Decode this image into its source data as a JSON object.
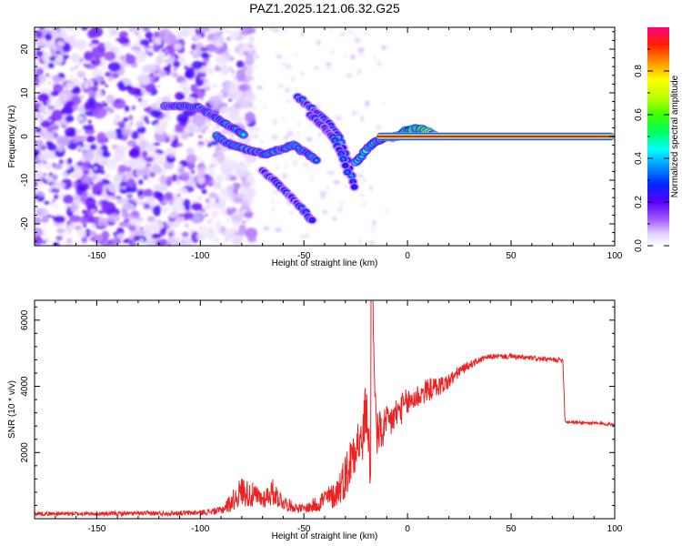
{
  "figure_title": "PAZ1.2025.121.06.32.G25",
  "chart_data": [
    {
      "type": "heatmap",
      "title": "PAZ1.2025.121.06.32.G25",
      "xlabel": "Height of straight line (km)",
      "ylabel": "Frequency (Hz)",
      "xlim": [
        -180,
        100
      ],
      "ylim": [
        -25,
        25
      ],
      "xticks": [
        -150,
        -100,
        -50,
        0,
        50,
        100
      ],
      "xtick_labels": [
        "-150",
        "-100",
        "-50",
        "0",
        "50",
        "100"
      ],
      "yticks": [
        -20,
        -10,
        0,
        10,
        20
      ],
      "ytick_labels": [
        "-20",
        "-10",
        "0",
        "10",
        "20"
      ],
      "colorbar": {
        "label": "Normalized spectral amplitude",
        "range": [
          0,
          1
        ],
        "ticks": [
          0,
          0.2,
          0.4,
          0.6,
          0.8
        ],
        "tick_labels": [
          "0.0",
          "0.2",
          "0.4",
          "0.6",
          "0.8"
        ]
      },
      "features": [
        {
          "name": "noise field",
          "x_range": [
            -180,
            -95
          ],
          "freq_range": [
            -25,
            25
          ],
          "amplitude": 0.15
        },
        {
          "name": "upper branch",
          "points": [
            [
              -117,
              7
            ],
            [
              -108,
              7
            ],
            [
              -100,
              6.5
            ],
            [
              -95,
              5
            ],
            [
              -90,
              3.5
            ],
            [
              -84,
              2
            ],
            [
              -78,
              0
            ]
          ],
          "amplitude": 0.42
        },
        {
          "name": "main trace",
          "points": [
            [
              -92,
              0
            ],
            [
              -85,
              -2
            ],
            [
              -77,
              -3
            ],
            [
              -68,
              -4
            ],
            [
              -62,
              -3
            ],
            [
              -55,
              -2
            ],
            [
              -48,
              -4
            ],
            [
              -43,
              -6
            ]
          ],
          "amplitude": 0.45
        },
        {
          "name": "lower branch",
          "points": [
            [
              -70,
              -8
            ],
            [
              -62,
              -11
            ],
            [
              -56,
              -14
            ],
            [
              -50,
              -17
            ],
            [
              -45,
              -20
            ]
          ],
          "amplitude": 0.3
        },
        {
          "name": "diagonal arc 1",
          "points": [
            [
              -53,
              9
            ],
            [
              -45,
              6
            ],
            [
              -38,
              3
            ],
            [
              -33,
              0
            ],
            [
              -30,
              -4
            ],
            [
              -27,
              -9
            ],
            [
              -25,
              -13
            ]
          ],
          "amplitude": 0.35
        },
        {
          "name": "diagonal arc 2",
          "points": [
            [
              -47,
              5
            ],
            [
              -40,
              2
            ],
            [
              -35,
              -1
            ],
            [
              -31,
              -5
            ],
            [
              -28,
              -10
            ]
          ],
          "amplitude": 0.3
        },
        {
          "name": "convergence",
          "points": [
            [
              -25,
              -6
            ],
            [
              -20,
              -3
            ],
            [
              -15,
              -1
            ],
            [
              -10,
              0
            ],
            [
              -5,
              0
            ]
          ],
          "amplitude": 0.6
        },
        {
          "name": "bump",
          "points": [
            [
              -5,
              0
            ],
            [
              0,
              1.5
            ],
            [
              5,
              2
            ],
            [
              10,
              1
            ],
            [
              14,
              0
            ]
          ],
          "amplitude": 0.9
        },
        {
          "name": "steady tone",
          "x_range": [
            -15,
            100
          ],
          "freq": 0,
          "amplitude": 0.98
        }
      ]
    },
    {
      "type": "line",
      "xlabel": "Height of straight line (km)",
      "ylabel": "SNR (10 * v/v)",
      "xlim": [
        -180,
        100
      ],
      "ylim": [
        0,
        6600
      ],
      "xticks": [
        -150,
        -100,
        -50,
        0,
        50,
        100
      ],
      "xtick_labels": [
        "-150",
        "-100",
        "-50",
        "0",
        "50",
        "100"
      ],
      "yticks": [
        2000,
        4000,
        6000
      ],
      "ytick_labels": [
        "2000",
        "4000",
        "6000"
      ],
      "color": "#ee2222",
      "series": [
        {
          "name": "SNR",
          "x": [
            -180,
            -150,
            -120,
            -100,
            -90,
            -85,
            -80,
            -75,
            -70,
            -65,
            -60,
            -55,
            -50,
            -45,
            -40,
            -35,
            -30,
            -28,
            -25,
            -22,
            -20,
            -18,
            -17,
            -15,
            -10,
            -5,
            0,
            5,
            10,
            15,
            20,
            25,
            30,
            35,
            40,
            50,
            60,
            70,
            75,
            76,
            77,
            85,
            100
          ],
          "y": [
            150,
            150,
            160,
            180,
            250,
            500,
            850,
            700,
            600,
            800,
            500,
            350,
            300,
            400,
            600,
            700,
            1300,
            1600,
            2400,
            2200,
            3400,
            1800,
            6600,
            2500,
            2800,
            3200,
            3500,
            3700,
            3900,
            4000,
            4150,
            4450,
            4650,
            4800,
            4900,
            4900,
            4850,
            4800,
            4800,
            2950,
            2930,
            2900,
            2850
          ],
          "noise": [
            60,
            60,
            70,
            80,
            120,
            300,
            450,
            400,
            300,
            400,
            250,
            150,
            120,
            250,
            350,
            400,
            700,
            800,
            900,
            700,
            900,
            500,
            0,
            700,
            600,
            500,
            450,
            400,
            350,
            300,
            250,
            180,
            120,
            100,
            80,
            80,
            70,
            70,
            70,
            50,
            50,
            50,
            50
          ]
        }
      ]
    }
  ]
}
